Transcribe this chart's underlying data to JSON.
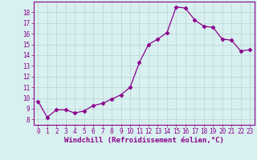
{
  "x": [
    0,
    1,
    2,
    3,
    4,
    5,
    6,
    7,
    8,
    9,
    10,
    11,
    12,
    13,
    14,
    15,
    16,
    17,
    18,
    19,
    20,
    21,
    22,
    23
  ],
  "y": [
    9.7,
    8.2,
    8.9,
    8.9,
    8.6,
    8.8,
    9.3,
    9.5,
    9.9,
    10.3,
    11.0,
    13.3,
    15.0,
    15.5,
    16.1,
    18.5,
    18.4,
    17.3,
    16.7,
    16.6,
    15.5,
    15.4,
    14.4,
    14.5
  ],
  "line_color": "#8B008B",
  "marker": "D",
  "marker_size": 2.5,
  "background_color": "#d8f0f0",
  "grid_color": "#b8d4d4",
  "xlabel": "Windchill (Refroidissement éolien,°C)",
  "xlabel_color": "#8B008B",
  "xlim": [
    -0.5,
    23.5
  ],
  "ylim": [
    7.5,
    19.0
  ],
  "yticks": [
    8,
    9,
    10,
    11,
    12,
    13,
    14,
    15,
    16,
    17,
    18
  ],
  "xticks": [
    0,
    1,
    2,
    3,
    4,
    5,
    6,
    7,
    8,
    9,
    10,
    11,
    12,
    13,
    14,
    15,
    16,
    17,
    18,
    19,
    20,
    21,
    22,
    23
  ],
  "tick_color": "#8B008B",
  "tick_label_size": 5.5,
  "xlabel_size": 6.5,
  "spine_color": "#8B008B"
}
